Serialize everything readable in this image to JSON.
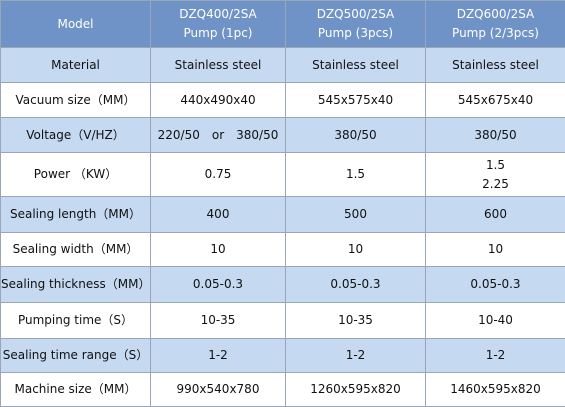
{
  "table": {
    "header": [
      [
        "Model"
      ],
      [
        "DZQ400/2SA",
        "Pump (1pc)"
      ],
      [
        "DZQ500/2SA",
        "Pump (3pcs)"
      ],
      [
        "DZQ600/2SA",
        "Pump (2/3pcs)"
      ]
    ],
    "rows": [
      [
        [
          "Material"
        ],
        [
          "Stainless steel"
        ],
        [
          "Stainless steel"
        ],
        [
          "Stainless steel"
        ]
      ],
      [
        [
          "Vacuum size（MM）"
        ],
        [
          "440x490x40"
        ],
        [
          "545x575x40"
        ],
        [
          "545x675x40"
        ]
      ],
      [
        [
          "Voltage（V/HZ）"
        ],
        [
          "220/50　or　380/50"
        ],
        [
          "380/50"
        ],
        [
          "380/50"
        ]
      ],
      [
        [
          "Power （KW）"
        ],
        [
          "0.75"
        ],
        [
          "1.5"
        ],
        [
          "1.5",
          "2.25"
        ]
      ],
      [
        [
          "Sealing length（MM）"
        ],
        [
          "400"
        ],
        [
          "500"
        ],
        [
          "600"
        ]
      ],
      [
        [
          "Sealing width（MM）"
        ],
        [
          "10"
        ],
        [
          "10"
        ],
        [
          "10"
        ]
      ],
      [
        [
          "Sealing thickness（MM）"
        ],
        [
          "0.05-0.3"
        ],
        [
          "0.05-0.3"
        ],
        [
          "0.05-0.3"
        ]
      ],
      [
        [
          "Pumping time（S）"
        ],
        [
          "10-35"
        ],
        [
          "10-35"
        ],
        [
          "10-40"
        ]
      ],
      [
        [
          "Sealing time range（S）"
        ],
        [
          "1-2"
        ],
        [
          "1-2"
        ],
        [
          "1-2"
        ]
      ],
      [
        [
          "Machine size（MM）"
        ],
        [
          "990x540x780"
        ],
        [
          "1260x595x820"
        ],
        [
          "1460x595x820"
        ]
      ]
    ]
  }
}
